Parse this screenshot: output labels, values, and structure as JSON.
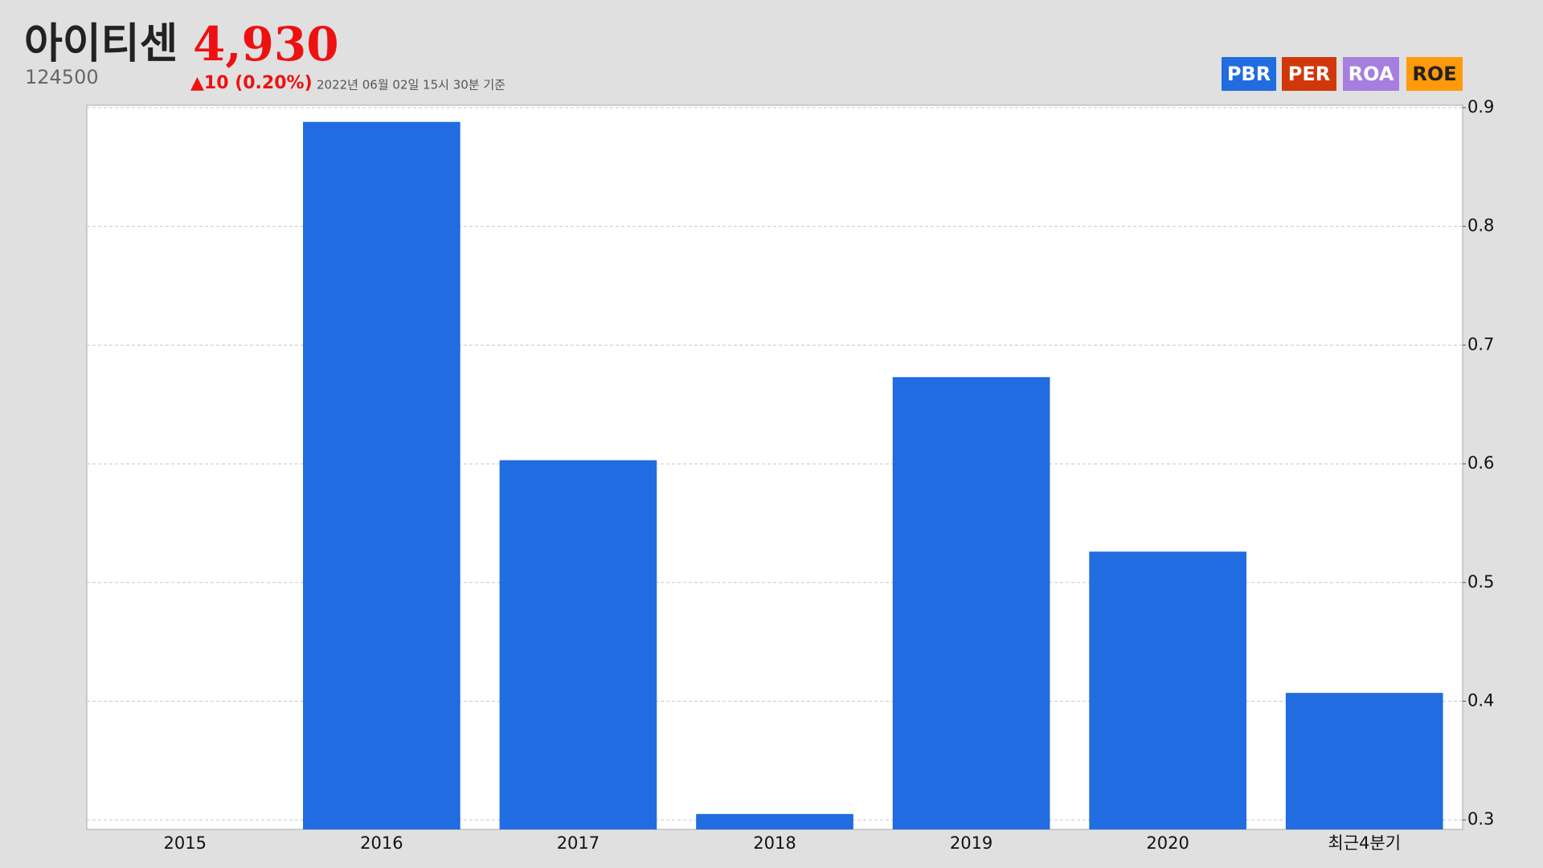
{
  "header": {
    "name": "아이티센",
    "code": "124500",
    "price": "4,930",
    "change": "▲10 (0.20%)",
    "timestamp": "2022년 06월 02일 15시 30분 기준",
    "tabs": [
      {
        "label": "PBR",
        "color": "#206ce0"
      },
      {
        "label": "PER",
        "color": "#d0380c"
      },
      {
        "label": "ROA",
        "color": "#a67ee0"
      },
      {
        "label": "ROE",
        "color": "#ff9a0a"
      }
    ]
  },
  "chart_data": {
    "type": "bar",
    "categories": [
      "2015",
      "2016",
      "2017",
      "2018",
      "2019",
      "2020",
      "최근4분기"
    ],
    "series": [
      {
        "name": "PBR",
        "color": "#206ce0",
        "values": [
          null,
          0.888,
          0.603,
          0.305,
          0.673,
          0.526,
          0.407
        ]
      }
    ],
    "ylim": [
      0.292,
      0.902
    ],
    "yticks": [
      0.3,
      0.4,
      0.5,
      0.6,
      0.7,
      0.8,
      0.9
    ],
    "grid": true,
    "y_axis_side": "right"
  }
}
